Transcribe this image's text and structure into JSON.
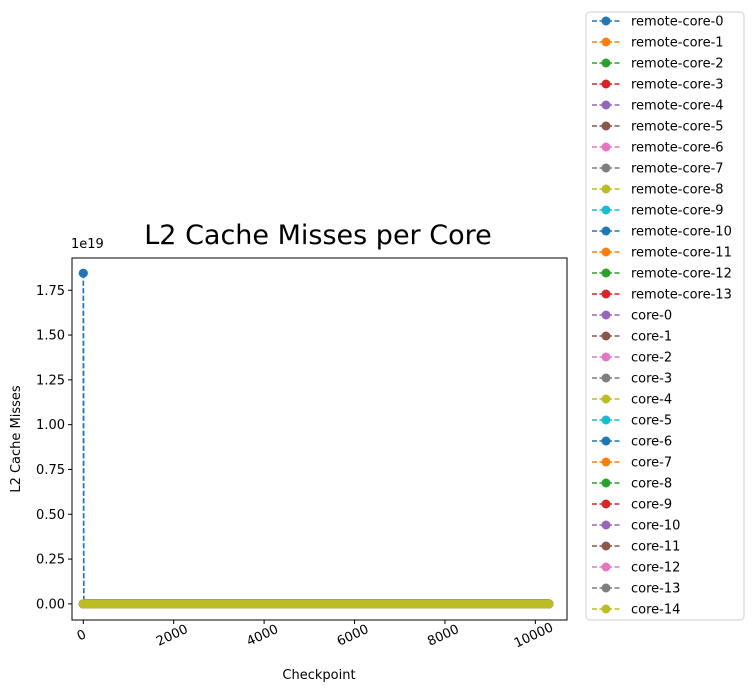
{
  "chart_data": {
    "type": "line",
    "title": "L2 Cache Misses per Core",
    "xlabel": "Checkpoint",
    "ylabel": "L2 Cache Misses",
    "y_offset_label": "1e19",
    "xlim": [
      -250,
      10700
    ],
    "ylim": [
      -0.09,
      1.93
    ],
    "y_scale_exponent": 19,
    "xticks": [
      0,
      2000,
      4000,
      6000,
      8000,
      10000
    ],
    "xtick_labels": [
      "0",
      "2000",
      "4000",
      "6000",
      "8000",
      "10000"
    ],
    "yticks": [
      0,
      0.25,
      0.5,
      0.75,
      1.0,
      1.25,
      1.5,
      1.75
    ],
    "ytick_labels": [
      "0.00",
      "0.25",
      "0.50",
      "0.75",
      "1.00",
      "1.25",
      "1.50",
      "1.75"
    ],
    "x_range": [
      0,
      10300
    ],
    "grid": false,
    "legend_position": "outside-right",
    "line_style": "dashed",
    "marker": "circle",
    "series": [
      {
        "name": "remote-core-0",
        "color": "#1f77b4",
        "spike": {
          "x": 0,
          "y": 1.845
        }
      },
      {
        "name": "remote-core-1",
        "color": "#ff7f0e"
      },
      {
        "name": "remote-core-2",
        "color": "#2ca02c"
      },
      {
        "name": "remote-core-3",
        "color": "#d62728"
      },
      {
        "name": "remote-core-4",
        "color": "#9467bd"
      },
      {
        "name": "remote-core-5",
        "color": "#8c564b"
      },
      {
        "name": "remote-core-6",
        "color": "#e377c2"
      },
      {
        "name": "remote-core-7",
        "color": "#7f7f7f"
      },
      {
        "name": "remote-core-8",
        "color": "#bcbd22"
      },
      {
        "name": "remote-core-9",
        "color": "#17becf"
      },
      {
        "name": "remote-core-10",
        "color": "#1f77b4",
        "spike": {
          "x": 0,
          "y": 1.845
        }
      },
      {
        "name": "remote-core-11",
        "color": "#ff7f0e"
      },
      {
        "name": "remote-core-12",
        "color": "#2ca02c"
      },
      {
        "name": "remote-core-13",
        "color": "#d62728"
      },
      {
        "name": "core-0",
        "color": "#9467bd"
      },
      {
        "name": "core-1",
        "color": "#8c564b"
      },
      {
        "name": "core-2",
        "color": "#e377c2"
      },
      {
        "name": "core-3",
        "color": "#7f7f7f"
      },
      {
        "name": "core-4",
        "color": "#bcbd22"
      },
      {
        "name": "core-5",
        "color": "#17becf"
      },
      {
        "name": "core-6",
        "color": "#1f77b4"
      },
      {
        "name": "core-7",
        "color": "#ff7f0e"
      },
      {
        "name": "core-8",
        "color": "#2ca02c"
      },
      {
        "name": "core-9",
        "color": "#d62728"
      },
      {
        "name": "core-10",
        "color": "#9467bd"
      },
      {
        "name": "core-11",
        "color": "#8c564b"
      },
      {
        "name": "core-12",
        "color": "#e377c2"
      },
      {
        "name": "core-13",
        "color": "#7f7f7f"
      },
      {
        "name": "core-14",
        "color": "#bcbd22"
      }
    ]
  }
}
